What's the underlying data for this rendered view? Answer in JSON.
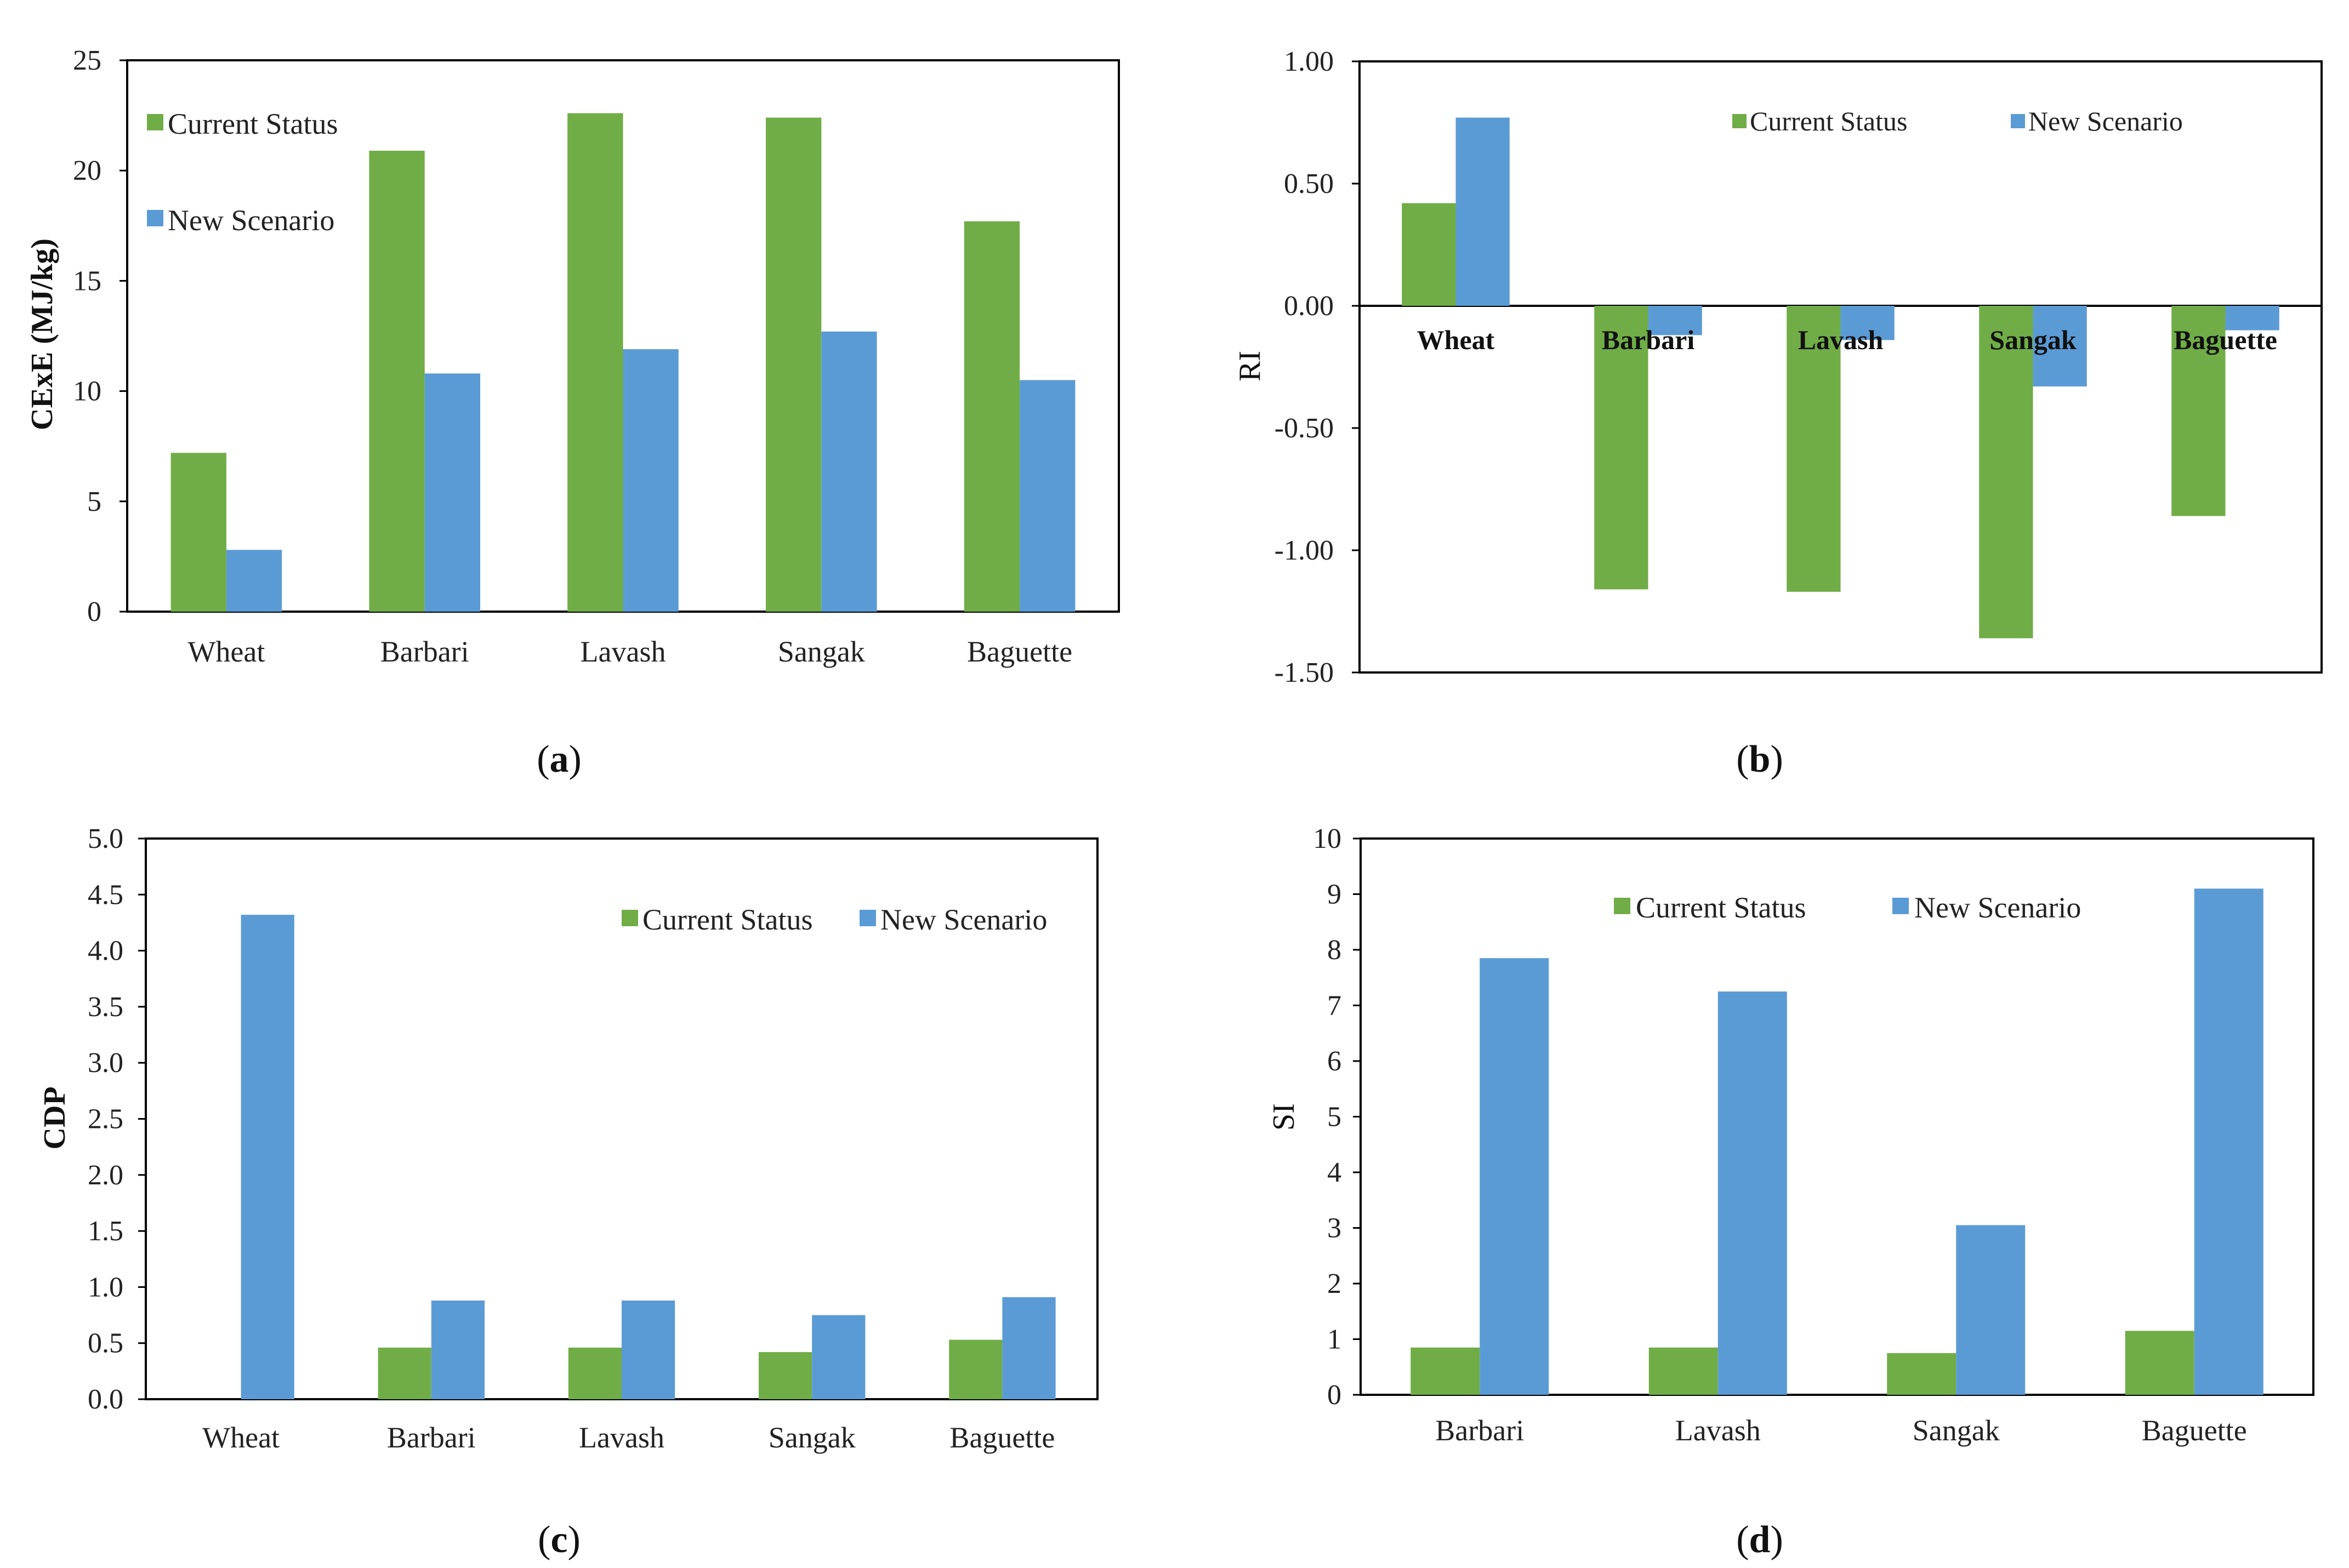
{
  "colors": {
    "current": "#70AD47",
    "new": "#5B9BD5",
    "axis": "#000000"
  },
  "chart_data": [
    {
      "id": "a",
      "type": "bar",
      "panel_label": "a",
      "ylabel": "CExE (MJ/kg)",
      "categories": [
        "Wheat",
        "Barbari",
        "Lavash",
        "Sangak",
        "Baguette"
      ],
      "ylim": [
        0,
        25
      ],
      "yticks": [
        0,
        5,
        10,
        15,
        20,
        25
      ],
      "ytick_labels": [
        "0",
        "5",
        "10",
        "15",
        "20",
        "25"
      ],
      "series": [
        {
          "name": "Current Status",
          "values": [
            7.2,
            20.9,
            22.6,
            22.4,
            17.7
          ]
        },
        {
          "name": "New Scenario",
          "values": [
            2.8,
            10.8,
            11.9,
            12.7,
            10.5
          ]
        }
      ],
      "legend": "top-left"
    },
    {
      "id": "b",
      "type": "bar",
      "panel_label": "b",
      "ylabel": "RI",
      "categories": [
        "Wheat",
        "Barbari",
        "Lavash",
        "Sangak",
        "Baguette"
      ],
      "ylim": [
        -1.5,
        1.0
      ],
      "yticks": [
        -1.5,
        -1.0,
        -0.5,
        0.0,
        0.5,
        1.0
      ],
      "ytick_labels": [
        "-1.50",
        "-1.00",
        "-0.50",
        "0.00",
        "0.50",
        "1.00"
      ],
      "series": [
        {
          "name": "Current Status",
          "values": [
            0.42,
            -1.16,
            -1.17,
            -1.36,
            -0.86
          ]
        },
        {
          "name": "New Scenario",
          "values": [
            0.77,
            -0.12,
            -0.14,
            -0.33,
            -0.1
          ]
        }
      ],
      "legend": "top"
    },
    {
      "id": "c",
      "type": "bar",
      "panel_label": "c",
      "ylabel": "CDP",
      "categories": [
        "Wheat",
        "Barbari",
        "Lavash",
        "Sangak",
        "Baguette"
      ],
      "ylim": [
        0,
        5.0
      ],
      "yticks": [
        0,
        0.5,
        1.0,
        1.5,
        2.0,
        2.5,
        3.0,
        3.5,
        4.0,
        4.5,
        5.0
      ],
      "ytick_labels": [
        "0.0",
        "0.5",
        "1.0",
        "1.5",
        "2.0",
        "2.5",
        "3.0",
        "3.5",
        "4.0",
        "4.5",
        "5.0"
      ],
      "series": [
        {
          "name": "Current Status",
          "values": [
            0,
            0.46,
            0.46,
            0.42,
            0.53
          ]
        },
        {
          "name": "New Scenario",
          "values": [
            4.32,
            0.88,
            0.88,
            0.75,
            0.91
          ]
        }
      ],
      "legend": "top-right"
    },
    {
      "id": "d",
      "type": "bar",
      "panel_label": "d",
      "ylabel": "SI",
      "categories": [
        "Barbari",
        "Lavash",
        "Sangak",
        "Baguette"
      ],
      "ylim": [
        0,
        10
      ],
      "yticks": [
        0,
        1,
        2,
        3,
        4,
        5,
        6,
        7,
        8,
        9,
        10
      ],
      "ytick_labels": [
        "0",
        "1",
        "2",
        "3",
        "4",
        "5",
        "6",
        "7",
        "8",
        "9",
        "10"
      ],
      "series": [
        {
          "name": "Current Status",
          "values": [
            0.85,
            0.85,
            0.75,
            1.15
          ]
        },
        {
          "name": "New Scenario",
          "values": [
            7.85,
            7.25,
            3.05,
            9.1
          ]
        }
      ],
      "legend": "top"
    }
  ]
}
